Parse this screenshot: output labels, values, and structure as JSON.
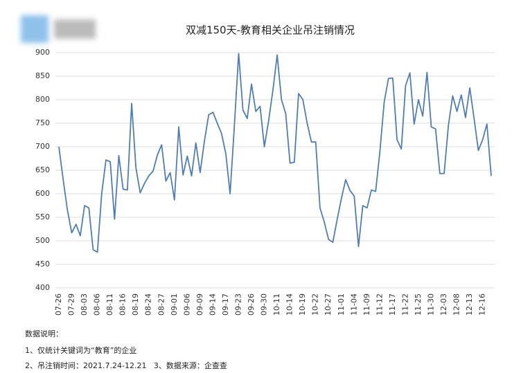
{
  "chart_data": {
    "type": "line",
    "title": "双减150天-教育相关企业吊注销情况",
    "categories": [
      "07-26",
      null,
      null,
      "07-29",
      null,
      null,
      "08-03",
      null,
      null,
      "08-06",
      null,
      null,
      "08-11",
      null,
      null,
      "08-16",
      null,
      null,
      "08-19",
      null,
      null,
      "08-24",
      null,
      null,
      "08-27",
      null,
      null,
      "09-01",
      null,
      null,
      "09-06",
      null,
      null,
      "09-09",
      null,
      null,
      "09-14",
      null,
      null,
      "09-17",
      null,
      null,
      "09-23",
      null,
      null,
      "09-26",
      null,
      null,
      "09-30",
      null,
      null,
      "10-11",
      null,
      null,
      "10-14",
      null,
      null,
      "10-19",
      null,
      null,
      "10-22",
      null,
      null,
      "10-27",
      null,
      null,
      "11-01",
      null,
      null,
      "11-04",
      null,
      null,
      "11-09",
      null,
      null,
      "11-12",
      null,
      null,
      "11-17",
      null,
      null,
      "11-22",
      null,
      null,
      "11-25",
      null,
      null,
      "11-30",
      null,
      null,
      "12-03",
      null,
      null,
      "12-08",
      null,
      null,
      "12-13",
      null,
      null,
      "12-16",
      null,
      null
    ],
    "series": [
      {
        "color": "#4f7db3",
        "values": [
          700,
          630,
          565,
          517,
          535,
          511,
          575,
          570,
          481,
          476,
          600,
          672,
          668,
          546,
          681,
          610,
          608,
          792,
          655,
          602,
          622,
          638,
          648,
          682,
          704,
          627,
          645,
          587,
          742,
          640,
          680,
          638,
          708,
          645,
          712,
          768,
          773,
          750,
          728,
          685,
          600,
          745,
          898,
          778,
          760,
          833,
          775,
          786,
          700,
          755,
          820,
          895,
          800,
          770,
          665,
          667,
          813,
          800,
          750,
          710,
          710,
          570,
          540,
          503,
          497,
          545,
          590,
          630,
          607,
          595,
          488,
          575,
          570,
          608,
          605,
          690,
          795,
          845,
          846,
          715,
          695,
          830,
          857,
          748,
          800,
          765,
          858,
          742,
          738,
          643,
          643,
          745,
          808,
          775,
          810,
          762,
          825,
          760,
          692,
          715,
          748,
          638
        ]
      }
    ],
    "ylim": [
      400,
      900
    ],
    "yticks": [
      400,
      450,
      500,
      550,
      600,
      650,
      700,
      750,
      800,
      850,
      900
    ],
    "grid": true
  },
  "notes": [
    "数据说明：",
    "1、仅统计关键词为“教育”的企业",
    "2、吊注销时间：2021.7.24-12.21   3、数据来源：企查查"
  ]
}
